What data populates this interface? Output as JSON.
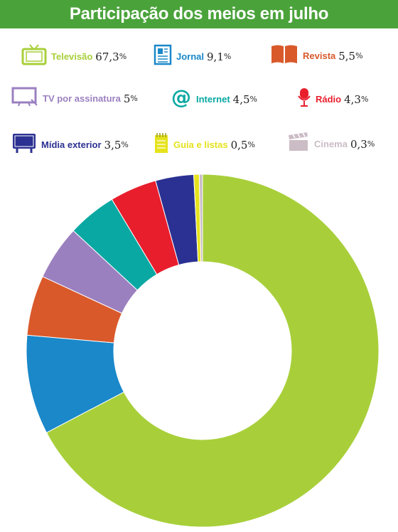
{
  "title": "Participação dos meios em julho",
  "chart_data": {
    "type": "pie",
    "style": "donut",
    "title": "Participação dos meios em julho",
    "unit": "%",
    "start_angle_deg": 90,
    "direction": "clockwise",
    "slices": [
      {
        "name": "Televisão",
        "value": 67.3,
        "label": "67,3",
        "color": "#a8cf3a",
        "icon": "tv-icon"
      },
      {
        "name": "Jornal",
        "value": 9.1,
        "label": "9,1",
        "color": "#1a88c9",
        "icon": "newspaper-icon"
      },
      {
        "name": "Revista",
        "value": 5.5,
        "label": "5,5",
        "color": "#d9592b",
        "icon": "magazine-icon"
      },
      {
        "name": "TV por assinatura",
        "value": 5,
        "label": "5",
        "color": "#9b80c0",
        "icon": "pay-tv-icon"
      },
      {
        "name": "Internet",
        "value": 4.5,
        "label": "4,5",
        "color": "#0aa8a2",
        "icon": "at-sign-icon"
      },
      {
        "name": "Rádio",
        "value": 4.3,
        "label": "4,3",
        "color": "#e81e2d",
        "icon": "microphone-icon"
      },
      {
        "name": "Mídia exterior",
        "value": 3.5,
        "label": "3,5",
        "color": "#2b3192",
        "icon": "billboard-icon"
      },
      {
        "name": "Guia e listas",
        "value": 0.5,
        "label": "0,5",
        "color": "#e6e31c",
        "icon": "notepad-icon"
      },
      {
        "name": "Cinema",
        "value": 0.3,
        "label": "0,3",
        "color": "#cbbcc6",
        "icon": "clapperboard-icon"
      }
    ]
  }
}
